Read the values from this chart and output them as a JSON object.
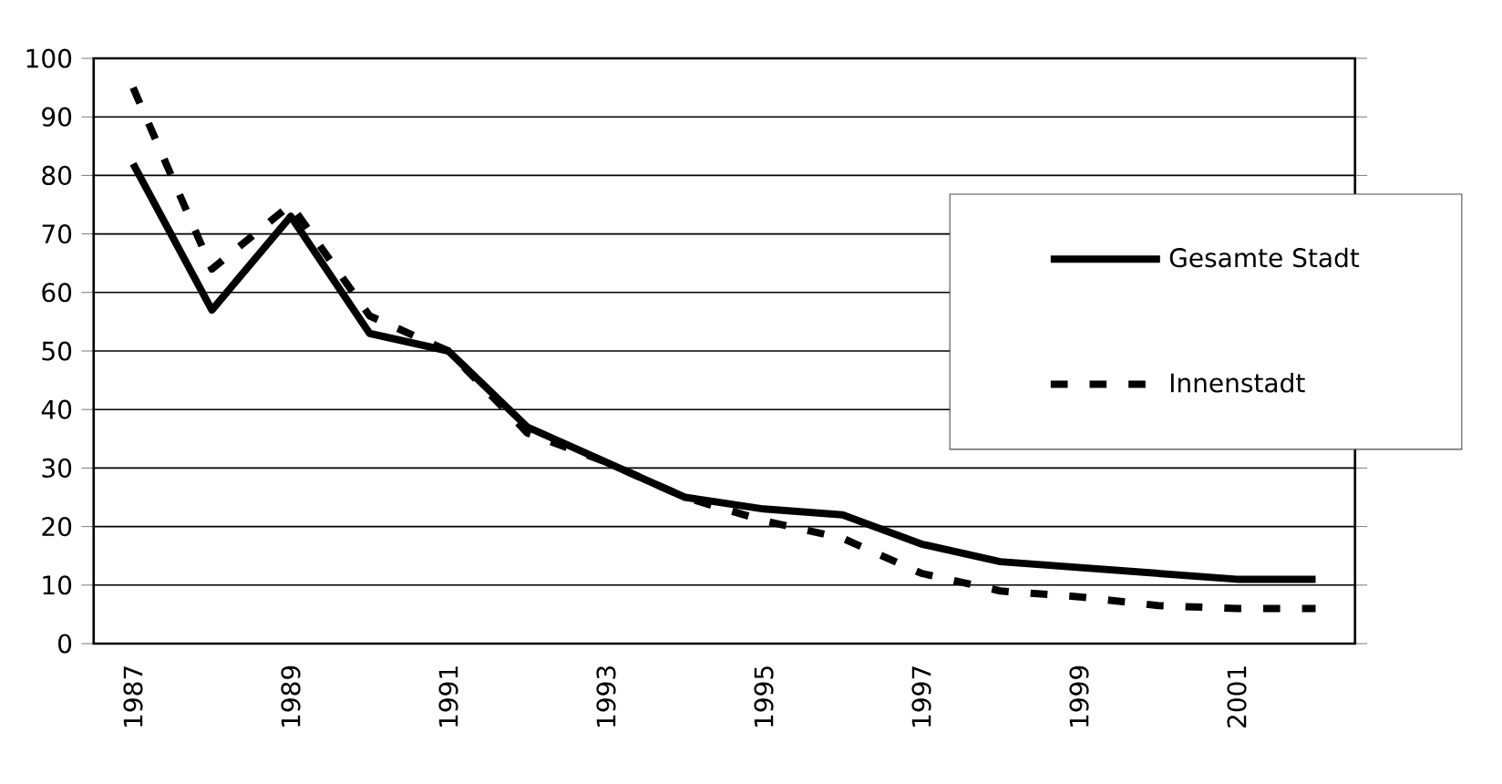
{
  "chart_data": {
    "type": "line",
    "categories": [
      "1987",
      null,
      "1989",
      null,
      "1991",
      null,
      "1993",
      null,
      "1995",
      null,
      "1997",
      null,
      "1999",
      null,
      "2001",
      null
    ],
    "series": [
      {
        "name": "Gesamte Stadt",
        "color": "#000000",
        "line_style": "solid",
        "values": [
          82,
          57,
          73,
          53,
          50,
          37,
          31,
          25,
          23,
          22,
          17,
          14,
          13,
          12,
          11,
          11
        ]
      },
      {
        "name": "Innenstadt",
        "color": "#000000",
        "line_style": "dashed",
        "values": [
          95,
          64,
          75,
          56,
          50,
          36,
          31,
          25,
          21,
          18,
          12,
          9,
          8,
          6.5,
          6,
          6
        ]
      }
    ],
    "ylim": [
      0,
      100
    ],
    "yticks": [
      0,
      10,
      20,
      30,
      40,
      50,
      60,
      70,
      80,
      90,
      100
    ],
    "grid": "y",
    "legend": "right",
    "marker": "none"
  }
}
